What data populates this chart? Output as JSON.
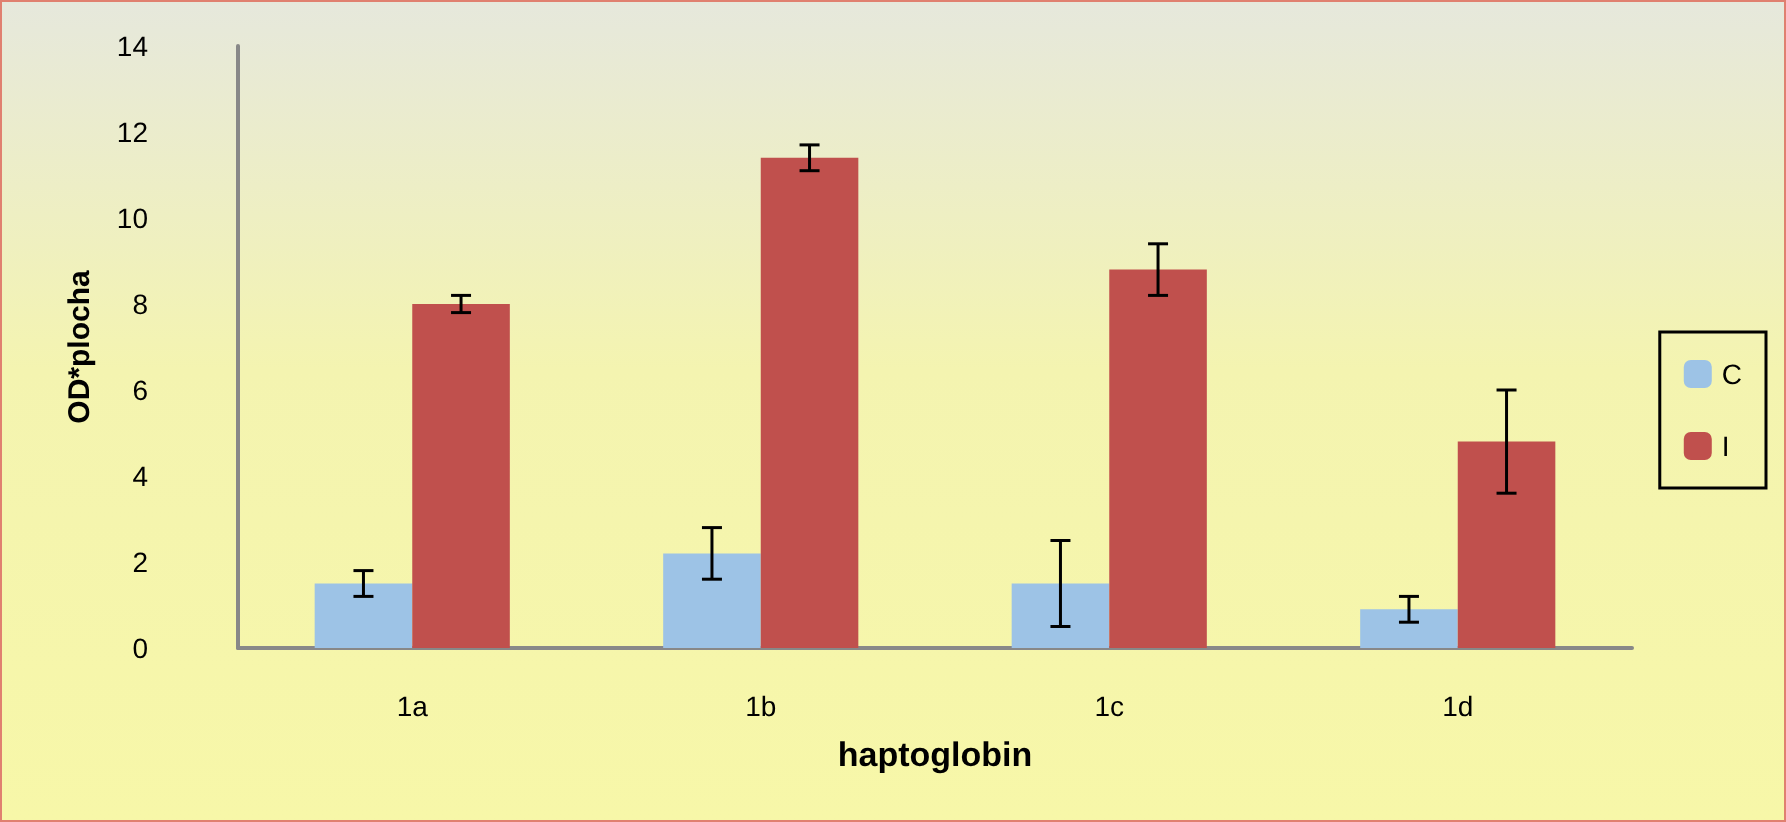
{
  "chart_data": {
    "type": "bar",
    "xlabel": "haptoglobin",
    "ylabel": "OD*plocha",
    "categories": [
      "1a",
      "1b",
      "1c",
      "1d"
    ],
    "series": [
      {
        "name": "C",
        "color": "#9dc3e6",
        "values": [
          1.5,
          2.2,
          1.5,
          0.9
        ],
        "errors": [
          0.3,
          0.6,
          1.0,
          0.3
        ]
      },
      {
        "name": "I",
        "color": "#c0504d",
        "values": [
          8.0,
          11.4,
          8.8,
          4.8
        ],
        "errors": [
          0.2,
          0.3,
          0.6,
          1.2
        ]
      }
    ],
    "ylim": [
      0,
      14
    ],
    "yticks": [
      0,
      2,
      4,
      6,
      8,
      10,
      12,
      14
    ],
    "grid": false,
    "legend": "right"
  }
}
